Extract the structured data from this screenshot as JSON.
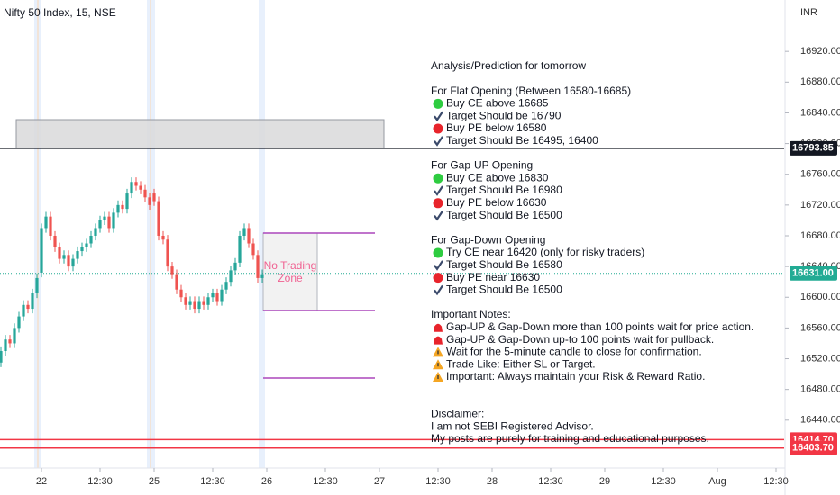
{
  "chart_data": {
    "type": "candlestick",
    "title": "Nifty 50 Index, 15, NSE",
    "currency": "INR",
    "up_color": "#26a69a",
    "down_color": "#ef5350",
    "open": [
      16515,
      16530,
      16545,
      16540,
      16560,
      16575,
      16590,
      16585,
      16605,
      16632,
      16690,
      16705,
      16680,
      16665,
      16650,
      16655,
      16640,
      16650,
      16660,
      16665,
      16670,
      16680,
      16690,
      16700,
      16705,
      16690,
      16710,
      16720,
      16715,
      16735,
      16750,
      16745,
      16740,
      16730,
      16735,
      16725,
      16680,
      16675,
      16640,
      16630,
      16610,
      16600,
      16590,
      16595,
      16585,
      16595,
      16590,
      16600,
      16605,
      16595,
      16610,
      16620,
      16635,
      16645,
      16680,
      16690,
      16670,
      16655,
      16625
    ],
    "high": [
      16536,
      16551,
      16551,
      16566,
      16581,
      16596,
      16596,
      16611,
      16631,
      16696,
      16711,
      16711,
      16686,
      16671,
      16661,
      16661,
      16656,
      16666,
      16671,
      16676,
      16686,
      16696,
      16706,
      16711,
      16711,
      16716,
      16726,
      16726,
      16741,
      16756,
      16756,
      16751,
      16746,
      16736,
      16741,
      16731,
      16686,
      16681,
      16646,
      16636,
      16616,
      16606,
      16601,
      16601,
      16601,
      16601,
      16606,
      16611,
      16611,
      16616,
      16626,
      16641,
      16651,
      16686,
      16696,
      16696,
      16676,
      16661,
      16636
    ],
    "low": [
      16509,
      16524,
      16534,
      16534,
      16554,
      16569,
      16579,
      16579,
      16599,
      16626,
      16684,
      16674,
      16659,
      16644,
      16644,
      16634,
      16634,
      16644,
      16654,
      16659,
      16664,
      16674,
      16684,
      16694,
      16684,
      16684,
      16704,
      16709,
      16709,
      16729,
      16739,
      16734,
      16724,
      16714,
      16719,
      16674,
      16669,
      16634,
      16624,
      16604,
      16594,
      16584,
      16584,
      16579,
      16579,
      16584,
      16584,
      16594,
      16589,
      16589,
      16604,
      16614,
      16629,
      16639,
      16674,
      16664,
      16649,
      16619,
      16619
    ],
    "close": [
      16530,
      16545,
      16540,
      16560,
      16575,
      16590,
      16585,
      16605,
      16625,
      16690,
      16705,
      16680,
      16665,
      16650,
      16655,
      16640,
      16650,
      16660,
      16665,
      16670,
      16680,
      16690,
      16700,
      16705,
      16690,
      16710,
      16720,
      16715,
      16735,
      16750,
      16745,
      16740,
      16730,
      16720,
      16725,
      16680,
      16675,
      16640,
      16630,
      16610,
      16600,
      16590,
      16595,
      16585,
      16595,
      16590,
      16600,
      16605,
      16595,
      16610,
      16620,
      16635,
      16645,
      16680,
      16690,
      16670,
      16655,
      16625,
      16630
    ],
    "xlim": [
      -0.2,
      173.8
    ],
    "xticks": [
      {
        "value": 9,
        "label": "22"
      },
      {
        "value": 22,
        "label": "12:30"
      },
      {
        "value": 34,
        "label": "25"
      },
      {
        "value": 47,
        "label": "12:30"
      },
      {
        "value": 59,
        "label": "26"
      },
      {
        "value": 72,
        "label": "12:30"
      },
      {
        "value": 84,
        "label": "27"
      },
      {
        "value": 97,
        "label": "12:30"
      },
      {
        "value": 109,
        "label": "28"
      },
      {
        "value": 122,
        "label": "12:30"
      },
      {
        "value": 134,
        "label": "29"
      },
      {
        "value": 147,
        "label": "12:30"
      },
      {
        "value": 159,
        "label": "Aug"
      },
      {
        "value": 172,
        "label": "12:30"
      }
    ],
    "ylim": [
      16380,
      16987
    ],
    "yticks": [
      {
        "value": 16440,
        "label": "16440.00"
      },
      {
        "value": 16480,
        "label": "16480.00"
      },
      {
        "value": 16520,
        "label": "16520.00"
      },
      {
        "value": 16560,
        "label": "16560.00"
      },
      {
        "value": 16600,
        "label": "16600.00"
      },
      {
        "value": 16640,
        "label": "16640.00"
      },
      {
        "value": 16680,
        "label": "16680.00"
      },
      {
        "value": 16720,
        "label": "16720.00"
      },
      {
        "value": 16760,
        "label": "16760.00"
      },
      {
        "value": 16800,
        "label": "16800.00"
      },
      {
        "value": 16840,
        "label": "16840.00"
      },
      {
        "value": 16880,
        "label": "16880.00"
      },
      {
        "value": 16920,
        "label": "16920.00"
      }
    ],
    "grid": false,
    "levels": [
      {
        "value": 16793.85,
        "label": "16793.85",
        "color": "#131722",
        "style": "solid"
      },
      {
        "value": 16631,
        "label": "16631.00",
        "color": "#22ab94",
        "style": "dotted"
      },
      {
        "value": 16414.7,
        "label": "16414.70",
        "color": "#f23645",
        "style": "solid"
      },
      {
        "value": 16403.7,
        "label": "16403.70",
        "color": "#f23645",
        "style": "solid"
      }
    ],
    "zone_label": [
      "No Trading",
      "Zone"
    ],
    "annotation": {
      "title": "Analysis/Prediction for tomorrow",
      "sections": [
        {
          "heading": "For Flat Opening (Between 16580-16685)",
          "items": [
            {
              "icon": "green-circle",
              "text": "Buy CE above 16685"
            },
            {
              "icon": "check",
              "text": "Target Should be 16790"
            },
            {
              "icon": "red-circle",
              "text": "Buy PE below 16580"
            },
            {
              "icon": "check",
              "text": "Target Should Be 16495, 16400"
            }
          ]
        },
        {
          "heading": "For Gap-UP Opening",
          "items": [
            {
              "icon": "green-circle",
              "text": "Buy CE above 16830"
            },
            {
              "icon": "check",
              "text": "Target Should Be 16980"
            },
            {
              "icon": "red-circle",
              "text": "Buy PE below 16630"
            },
            {
              "icon": "check",
              "text": "Target Should Be 16500"
            }
          ]
        },
        {
          "heading": "For Gap-Down Opening",
          "items": [
            {
              "icon": "green-circle",
              "text": "Try CE near 16420 (only for risky traders)"
            },
            {
              "icon": "check",
              "text": "Target Should Be 16580"
            },
            {
              "icon": "red-circle",
              "text": "Buy PE near 16630"
            },
            {
              "icon": "check",
              "text": "Target Should Be 16500"
            }
          ]
        },
        {
          "heading": "Important Notes:",
          "items": [
            {
              "icon": "siren",
              "text": "Gap-UP & Gap-Down more than 100 points wait for price action."
            },
            {
              "icon": "siren",
              "text": "Gap-UP & Gap-Down up-to 100 points wait for pullback."
            },
            {
              "icon": "warning",
              "text": "Wait for the 5-minute candle to close for confirmation."
            },
            {
              "icon": "warning",
              "text": "Trade Like: Either SL or Target."
            },
            {
              "icon": "warning",
              "text": "Important: Always maintain your Risk & Reward Ratio."
            }
          ]
        }
      ],
      "disclaimer": {
        "heading": "Disclaimer:",
        "lines": [
          "I am not SEBI Registered Advisor.",
          "My posts are purely for training and educational purposes."
        ]
      }
    }
  }
}
